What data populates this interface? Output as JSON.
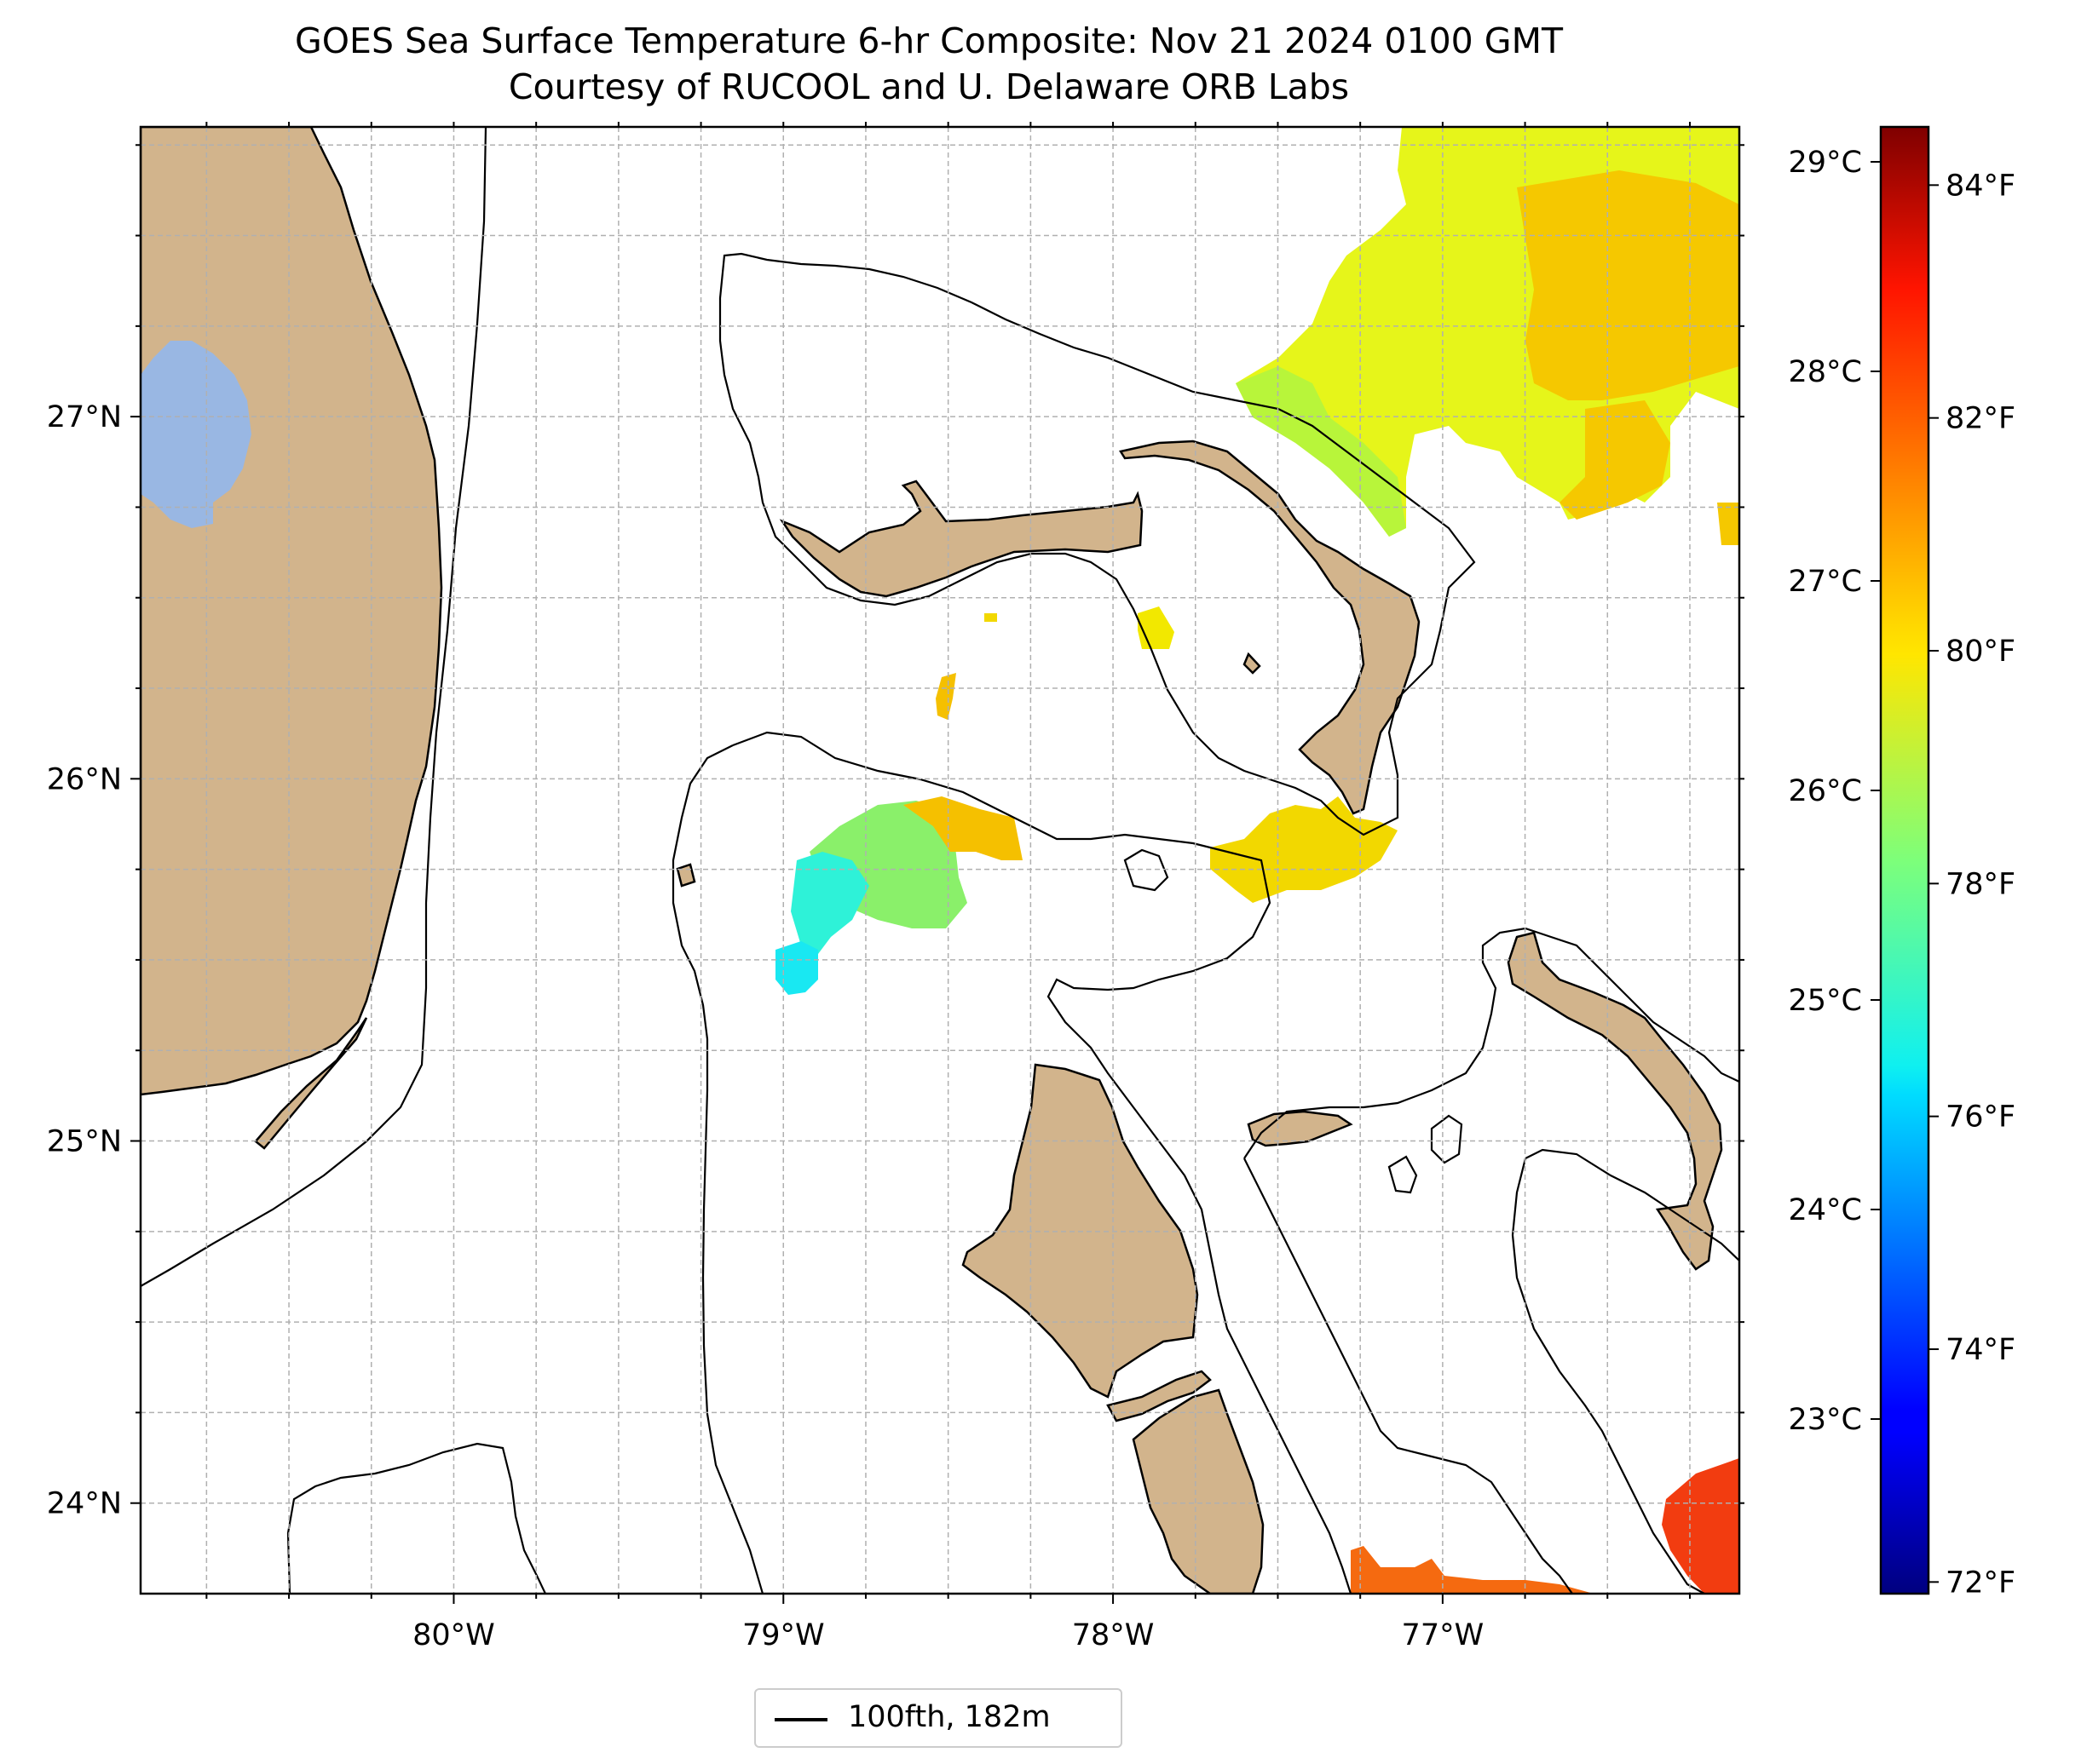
{
  "title": {
    "line1": "GOES Sea Surface Temperature 6-hr Composite: Nov 21 2024 0100 GMT",
    "line2": "Courtesy of RUCOOL and U. Delaware ORB Labs"
  },
  "map": {
    "lon_range": [
      -80.95,
      -76.1
    ],
    "lat_range": [
      23.75,
      27.8
    ],
    "lon_ticks": [
      {
        "value": -80,
        "label": "80°W"
      },
      {
        "value": -79,
        "label": "79°W"
      },
      {
        "value": -78,
        "label": "78°W"
      },
      {
        "value": -77,
        "label": "77°W"
      }
    ],
    "lat_ticks": [
      {
        "value": 24,
        "label": "24°N"
      },
      {
        "value": 25,
        "label": "25°N"
      },
      {
        "value": 26,
        "label": "26°N"
      },
      {
        "value": 27,
        "label": "27°N"
      }
    ],
    "gridlines": "dashed",
    "colors": {
      "land": "#d2b48c",
      "lake": "#99b7e3",
      "water": "#ffffff",
      "coastline": "#000000",
      "isobath": "#000000"
    }
  },
  "colorbar": {
    "colormap": "jet",
    "range_f": [
      71.9,
      84.5
    ],
    "fahrenheit_ticks": [
      {
        "value": 72,
        "label": "72°F"
      },
      {
        "value": 74,
        "label": "74°F"
      },
      {
        "value": 76,
        "label": "76°F"
      },
      {
        "value": 78,
        "label": "78°F"
      },
      {
        "value": 80,
        "label": "80°F"
      },
      {
        "value": 82,
        "label": "82°F"
      },
      {
        "value": 84,
        "label": "84°F"
      }
    ],
    "celsius_ticks": [
      {
        "value": 23,
        "label": "23°C"
      },
      {
        "value": 24,
        "label": "24°C"
      },
      {
        "value": 25,
        "label": "25°C"
      },
      {
        "value": 26,
        "label": "26°C"
      },
      {
        "value": 27,
        "label": "27°C"
      },
      {
        "value": 28,
        "label": "28°C"
      },
      {
        "value": 29,
        "label": "29°C"
      }
    ]
  },
  "sst_patches": [
    {
      "name": "ne-warm-region",
      "color": "#e6f51a"
    },
    {
      "name": "ne-orange-core",
      "color": "#f5c800"
    },
    {
      "name": "ne-green-fringe",
      "color": "#b8f53a"
    },
    {
      "name": "central-yellow",
      "color": "#f2d800"
    },
    {
      "name": "tongue-green",
      "color": "#8af06a"
    },
    {
      "name": "tongue-cyan",
      "color": "#2ef2d8"
    },
    {
      "name": "tongue-blue",
      "color": "#19e8f2"
    },
    {
      "name": "tongue-orange",
      "color": "#f5c000"
    },
    {
      "name": "se-red",
      "color": "#f23c10"
    },
    {
      "name": "s-orange",
      "color": "#f56a10"
    }
  ],
  "legend": {
    "label": "100fth, 182m"
  }
}
